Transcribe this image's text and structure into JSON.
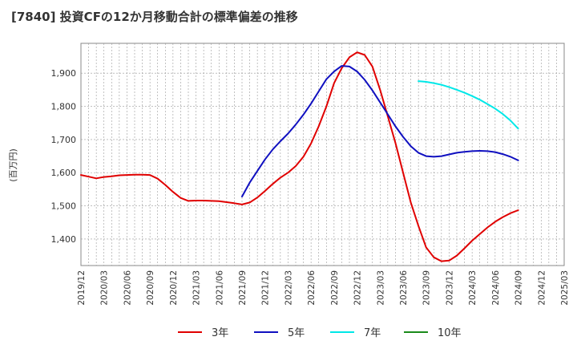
{
  "chart_data": {
    "type": "line",
    "title": "[7840]  投資CFの12か月移動合計の標準偏差の推移",
    "ylabel": "(百万円)",
    "xlabel": "",
    "ylim": [
      1320,
      1990
    ],
    "yticks": [
      1400,
      1500,
      1600,
      1700,
      1800,
      1900
    ],
    "ytick_labels": [
      "1,400",
      "1,500",
      "1,600",
      "1,700",
      "1,800",
      "1,900"
    ],
    "xlim": [
      "2019-12",
      "2025-03"
    ],
    "xtick_labels": [
      "2019/12",
      "2020/03",
      "2020/06",
      "2020/09",
      "2020/12",
      "2021/03",
      "2021/06",
      "2021/09",
      "2021/12",
      "2022/03",
      "2022/06",
      "2022/09",
      "2022/12",
      "2023/03",
      "2023/06",
      "2023/09",
      "2023/12",
      "2024/03",
      "2024/06",
      "2024/09",
      "2024/12",
      "2025/03"
    ],
    "grid": true,
    "legend_position": "bottom",
    "series": [
      {
        "name": "3年",
        "color": "#e00000",
        "x": [
          "2019-12",
          "2020-01",
          "2020-02",
          "2020-03",
          "2020-04",
          "2020-05",
          "2020-06",
          "2020-07",
          "2020-08",
          "2020-09",
          "2020-10",
          "2020-11",
          "2020-12",
          "2021-01",
          "2021-02",
          "2021-03",
          "2021-04",
          "2021-05",
          "2021-06",
          "2021-07",
          "2021-08",
          "2021-09",
          "2021-10",
          "2021-11",
          "2021-12",
          "2022-01",
          "2022-02",
          "2022-03",
          "2022-04",
          "2022-05",
          "2022-06",
          "2022-07",
          "2022-08",
          "2022-09",
          "2022-10",
          "2022-11",
          "2022-12",
          "2023-01",
          "2023-02",
          "2023-03",
          "2023-04",
          "2023-05",
          "2023-06",
          "2023-07",
          "2023-08",
          "2023-09",
          "2023-10",
          "2023-11",
          "2023-12",
          "2024-01",
          "2024-02",
          "2024-03",
          "2024-04",
          "2024-05",
          "2024-06",
          "2024-07",
          "2024-08",
          "2024-09"
        ],
        "values": [
          1593,
          1588,
          1583,
          1587,
          1589,
          1592,
          1593,
          1594,
          1594,
          1593,
          1582,
          1563,
          1542,
          1524,
          1515,
          1516,
          1516,
          1515,
          1514,
          1511,
          1508,
          1504,
          1510,
          1525,
          1545,
          1566,
          1585,
          1600,
          1620,
          1648,
          1688,
          1740,
          1800,
          1870,
          1915,
          1948,
          1963,
          1955,
          1920,
          1850,
          1770,
          1690,
          1600,
          1510,
          1440,
          1375,
          1345,
          1333,
          1335,
          1350,
          1372,
          1395,
          1415,
          1435,
          1452,
          1466,
          1478,
          1487
        ]
      },
      {
        "name": "5年",
        "color": "#1010c0",
        "x": [
          "2021-09",
          "2021-10",
          "2021-11",
          "2021-12",
          "2022-01",
          "2022-02",
          "2022-03",
          "2022-04",
          "2022-05",
          "2022-06",
          "2022-07",
          "2022-08",
          "2022-09",
          "2022-10",
          "2022-11",
          "2022-12",
          "2023-01",
          "2023-02",
          "2023-03",
          "2023-04",
          "2023-05",
          "2023-06",
          "2023-07",
          "2023-08",
          "2023-09",
          "2023-10",
          "2023-11",
          "2023-12",
          "2024-01",
          "2024-02",
          "2024-03",
          "2024-04",
          "2024-05",
          "2024-06",
          "2024-07",
          "2024-08",
          "2024-09"
        ],
        "values": [
          1528,
          1570,
          1605,
          1640,
          1670,
          1695,
          1718,
          1745,
          1775,
          1808,
          1845,
          1882,
          1905,
          1922,
          1920,
          1905,
          1880,
          1848,
          1812,
          1776,
          1740,
          1708,
          1680,
          1660,
          1650,
          1648,
          1650,
          1655,
          1660,
          1663,
          1665,
          1666,
          1665,
          1662,
          1656,
          1648,
          1637
        ]
      },
      {
        "name": "7年",
        "color": "#00e8e8",
        "x": [
          "2023-08",
          "2023-09",
          "2023-10",
          "2023-11",
          "2023-12",
          "2024-01",
          "2024-02",
          "2024-03",
          "2024-04",
          "2024-05",
          "2024-06",
          "2024-07",
          "2024-08",
          "2024-09"
        ],
        "values": [
          1876,
          1874,
          1870,
          1865,
          1858,
          1850,
          1841,
          1831,
          1820,
          1807,
          1793,
          1777,
          1757,
          1733
        ]
      },
      {
        "name": "10年",
        "color": "#1a8a1a",
        "x": [],
        "values": []
      }
    ]
  }
}
